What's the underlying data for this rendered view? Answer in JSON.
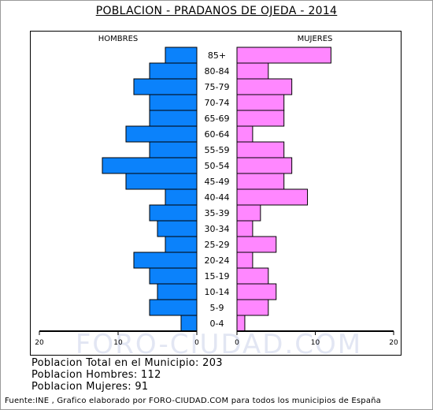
{
  "title": "POBLACION - PRADANOS DE OJEDA - 2014",
  "watermark": "FORO-CIUDAD.COM",
  "summary": {
    "total": "Poblacion Total en el Municipio: 203",
    "hombres": "Poblacion Hombres: 112",
    "mujeres": "Poblacion Mujeres: 91"
  },
  "source": "Fuente:INE , Grafico elaborado por FORO-CIUDAD.COM para todos los municipios de España",
  "colors": {
    "male": "#0b82fb",
    "female": "#ff87ff",
    "watermark": "#e2e6f3"
  },
  "chart_data": {
    "type": "bar",
    "orientation": "horizontal-pyramid",
    "categories": [
      "85+",
      "80-84",
      "75-79",
      "70-74",
      "65-69",
      "60-64",
      "55-59",
      "50-54",
      "45-49",
      "40-44",
      "35-39",
      "30-34",
      "25-29",
      "20-24",
      "15-19",
      "10-14",
      "5-9",
      "0-4"
    ],
    "series": [
      {
        "name": "HOMBRES",
        "values": [
          4,
          6,
          8,
          6,
          6,
          9,
          6,
          12,
          9,
          4,
          6,
          5,
          4,
          8,
          6,
          5,
          6,
          2
        ]
      },
      {
        "name": "MUJERES",
        "values": [
          12,
          4,
          7,
          6,
          6,
          2,
          6,
          7,
          6,
          9,
          3,
          2,
          5,
          2,
          4,
          5,
          4,
          1
        ]
      }
    ],
    "xlim": [
      0,
      20
    ],
    "x_ticks_left": [
      "20",
      "10",
      "0"
    ],
    "x_ticks_right": [
      "0",
      "10",
      "20"
    ],
    "grid": false
  }
}
